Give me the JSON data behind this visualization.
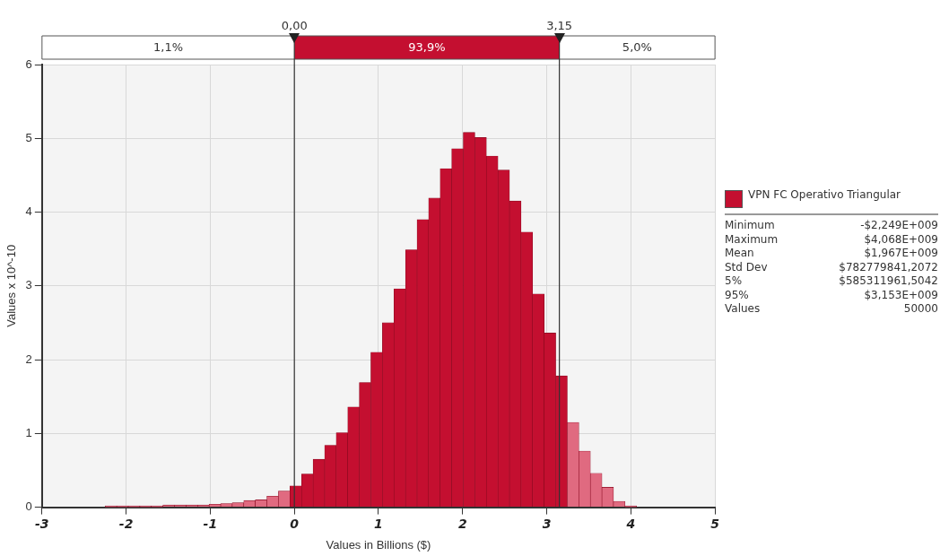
{
  "chart_data": {
    "type": "histogram",
    "xlabel": "Values in Billions ($)",
    "ylabel": "Values x 10^-10",
    "bins": [
      -2.249,
      -2.1117,
      -1.9744,
      -1.837,
      -1.6997,
      -1.5624,
      -1.4251,
      -1.2877,
      -1.1504,
      -1.0131,
      -0.8758,
      -0.7384,
      -0.6011,
      -0.4638,
      -0.3265,
      -0.1891,
      -0.0518,
      0.0855,
      0.2228,
      0.3602,
      0.4975,
      0.6348,
      0.7721,
      0.9095,
      1.0468,
      1.1841,
      1.3214,
      1.4588,
      1.5961,
      1.7334,
      1.8707,
      2.0081,
      2.1454,
      2.2827,
      2.42,
      2.5574,
      2.6947,
      2.832,
      2.9693,
      3.1067,
      3.244,
      3.3813,
      3.5186,
      3.656,
      3.7933,
      3.9306,
      4.068
    ],
    "series": [
      {
        "name": "VPN FC Operativo Triangular",
        "color": "#c40f30",
        "colors": [
          "#e06a80",
          "#e06a80",
          "#e06a80",
          "#e06a80",
          "#e06a80",
          "#e06a80",
          "#e06a80",
          "#e06a80",
          "#e06a80",
          "#e06a80",
          "#e06a80",
          "#e06a80",
          "#e06a80",
          "#e06a80",
          "#e06a80",
          "#e06a80",
          "#c40f30",
          "#c40f30",
          "#c40f30",
          "#c40f30",
          "#c40f30",
          "#c40f30",
          "#c40f30",
          "#c40f30",
          "#c40f30",
          "#c40f30",
          "#c40f30",
          "#c40f30",
          "#c40f30",
          "#c40f30",
          "#c40f30",
          "#c40f30",
          "#c40f30",
          "#c40f30",
          "#c40f30",
          "#c40f30",
          "#c40f30",
          "#c40f30",
          "#c40f30",
          "#c40f30",
          "#e06a80",
          "#e06a80",
          "#e06a80",
          "#e06a80",
          "#e06a80",
          "#e06a80"
        ],
        "values": [
          0.02,
          0.02,
          0.02,
          0.02,
          0.02,
          0.03,
          0.03,
          0.03,
          0.03,
          0.04,
          0.05,
          0.06,
          0.09,
          0.1,
          0.15,
          0.22,
          0.29,
          0.45,
          0.65,
          0.84,
          1.01,
          1.36,
          1.69,
          2.1,
          2.5,
          2.96,
          3.49,
          3.9,
          4.19,
          4.59,
          4.86,
          5.08,
          5.01,
          4.76,
          4.57,
          4.15,
          3.73,
          2.89,
          2.36,
          1.78,
          1.15,
          0.76,
          0.46,
          0.27,
          0.08,
          0.02
        ]
      }
    ],
    "xlim": [
      -3,
      5
    ],
    "xticks": [
      -3,
      -2,
      -1,
      0,
      1,
      2,
      3,
      4,
      5
    ],
    "ylim": [
      0,
      6
    ],
    "yticks": [
      0,
      1,
      2,
      3,
      4,
      5,
      6
    ],
    "grid": true,
    "legend": "right",
    "ref_lines": [
      {
        "axis": "x",
        "value": 0,
        "label": "0,00"
      },
      {
        "axis": "x",
        "value": 3.15,
        "label": "3,15"
      }
    ],
    "annotations": [
      "1,1%",
      "93,9%",
      "5,0%",
      "Minimum",
      "-$2,249E+009",
      "Maximum",
      "$4,068E+009",
      "Mean",
      "$1,967E+009",
      "Std Dev",
      "$782779841,2072",
      "5%",
      "$585311961,5042",
      "95%",
      "$3,153E+009",
      "Values",
      "50000"
    ]
  }
}
